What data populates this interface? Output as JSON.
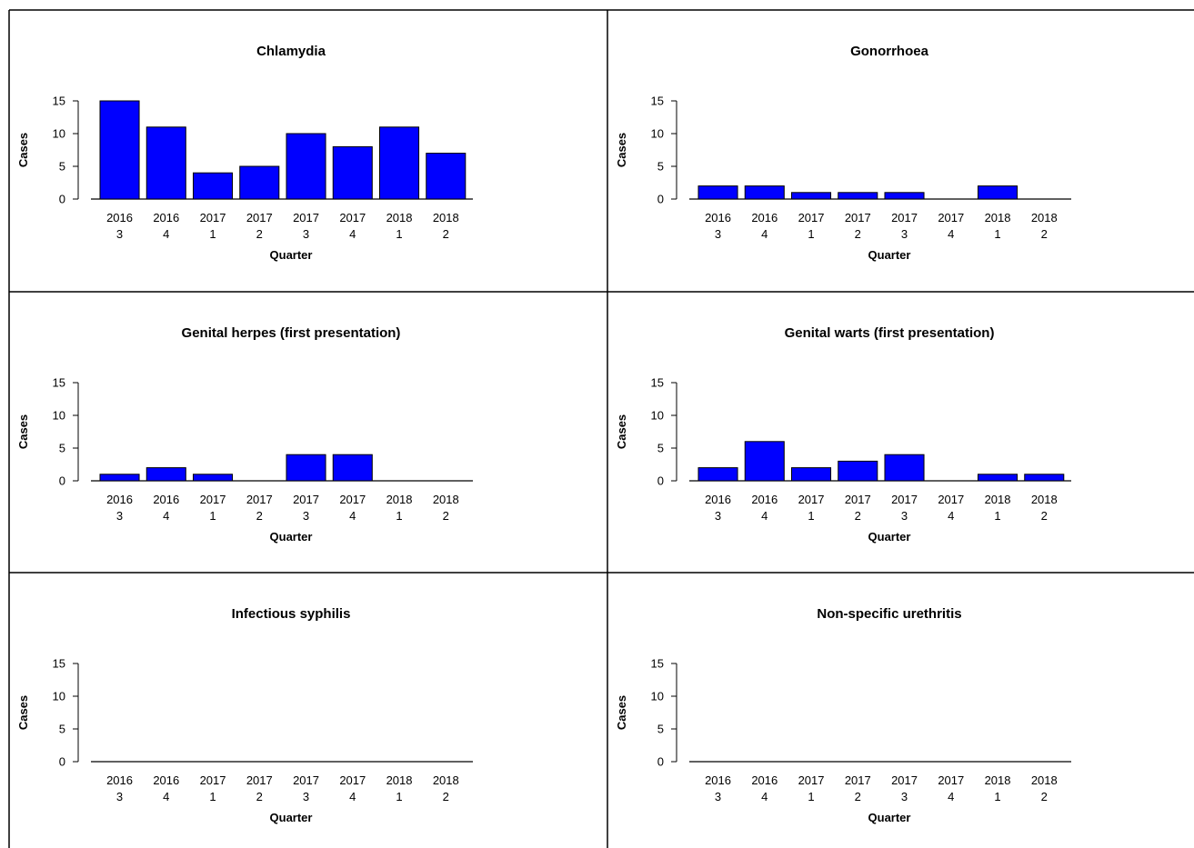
{
  "chart_data": [
    {
      "type": "bar",
      "title": "Chlamydia",
      "xlabel": "Quarter",
      "ylabel": "Cases",
      "categories": [
        [
          "2016",
          "3"
        ],
        [
          "2016",
          "4"
        ],
        [
          "2017",
          "1"
        ],
        [
          "2017",
          "2"
        ],
        [
          "2017",
          "3"
        ],
        [
          "2017",
          "4"
        ],
        [
          "2018",
          "1"
        ],
        [
          "2018",
          "2"
        ]
      ],
      "values": [
        15,
        11,
        4,
        5,
        10,
        8,
        11,
        7
      ],
      "ylim": [
        0,
        15
      ],
      "yticks": [
        "0",
        "5",
        "10",
        "15"
      ],
      "bar_color": "#0000ff"
    },
    {
      "type": "bar",
      "title": "Gonorrhoea",
      "xlabel": "Quarter",
      "ylabel": "Cases",
      "categories": [
        [
          "2016",
          "3"
        ],
        [
          "2016",
          "4"
        ],
        [
          "2017",
          "1"
        ],
        [
          "2017",
          "2"
        ],
        [
          "2017",
          "3"
        ],
        [
          "2017",
          "4"
        ],
        [
          "2018",
          "1"
        ],
        [
          "2018",
          "2"
        ]
      ],
      "values": [
        2,
        2,
        1,
        1,
        1,
        0,
        2,
        0
      ],
      "ylim": [
        0,
        15
      ],
      "yticks": [
        "0",
        "5",
        "10",
        "15"
      ],
      "bar_color": "#0000ff"
    },
    {
      "type": "bar",
      "title": "Genital herpes (first presentation)",
      "xlabel": "Quarter",
      "ylabel": "Cases",
      "categories": [
        [
          "2016",
          "3"
        ],
        [
          "2016",
          "4"
        ],
        [
          "2017",
          "1"
        ],
        [
          "2017",
          "2"
        ],
        [
          "2017",
          "3"
        ],
        [
          "2017",
          "4"
        ],
        [
          "2018",
          "1"
        ],
        [
          "2018",
          "2"
        ]
      ],
      "values": [
        1,
        2,
        1,
        0,
        4,
        4,
        0,
        0
      ],
      "ylim": [
        0,
        15
      ],
      "yticks": [
        "0",
        "5",
        "10",
        "15"
      ],
      "bar_color": "#0000ff"
    },
    {
      "type": "bar",
      "title": "Genital warts (first presentation)",
      "xlabel": "Quarter",
      "ylabel": "Cases",
      "categories": [
        [
          "2016",
          "3"
        ],
        [
          "2016",
          "4"
        ],
        [
          "2017",
          "1"
        ],
        [
          "2017",
          "2"
        ],
        [
          "2017",
          "3"
        ],
        [
          "2017",
          "4"
        ],
        [
          "2018",
          "1"
        ],
        [
          "2018",
          "2"
        ]
      ],
      "values": [
        2,
        6,
        2,
        3,
        4,
        0,
        1,
        1
      ],
      "ylim": [
        0,
        15
      ],
      "yticks": [
        "0",
        "5",
        "10",
        "15"
      ],
      "bar_color": "#0000ff"
    },
    {
      "type": "bar",
      "title": "Infectious syphilis",
      "xlabel": "Quarter",
      "ylabel": "Cases",
      "categories": [
        [
          "2016",
          "3"
        ],
        [
          "2016",
          "4"
        ],
        [
          "2017",
          "1"
        ],
        [
          "2017",
          "2"
        ],
        [
          "2017",
          "3"
        ],
        [
          "2017",
          "4"
        ],
        [
          "2018",
          "1"
        ],
        [
          "2018",
          "2"
        ]
      ],
      "values": [
        0,
        0,
        0,
        0,
        0,
        0,
        0,
        0
      ],
      "ylim": [
        0,
        15
      ],
      "yticks": [
        "0",
        "5",
        "10",
        "15"
      ],
      "bar_color": "#0000ff"
    },
    {
      "type": "bar",
      "title": "Non-specific urethritis",
      "xlabel": "Quarter",
      "ylabel": "Cases",
      "categories": [
        [
          "2016",
          "3"
        ],
        [
          "2016",
          "4"
        ],
        [
          "2017",
          "1"
        ],
        [
          "2017",
          "2"
        ],
        [
          "2017",
          "3"
        ],
        [
          "2017",
          "4"
        ],
        [
          "2018",
          "1"
        ],
        [
          "2018",
          "2"
        ]
      ],
      "values": [
        0,
        0,
        0,
        0,
        0,
        0,
        0,
        0
      ],
      "ylim": [
        0,
        15
      ],
      "yticks": [
        "0",
        "5",
        "10",
        "15"
      ],
      "bar_color": "#0000ff"
    }
  ]
}
